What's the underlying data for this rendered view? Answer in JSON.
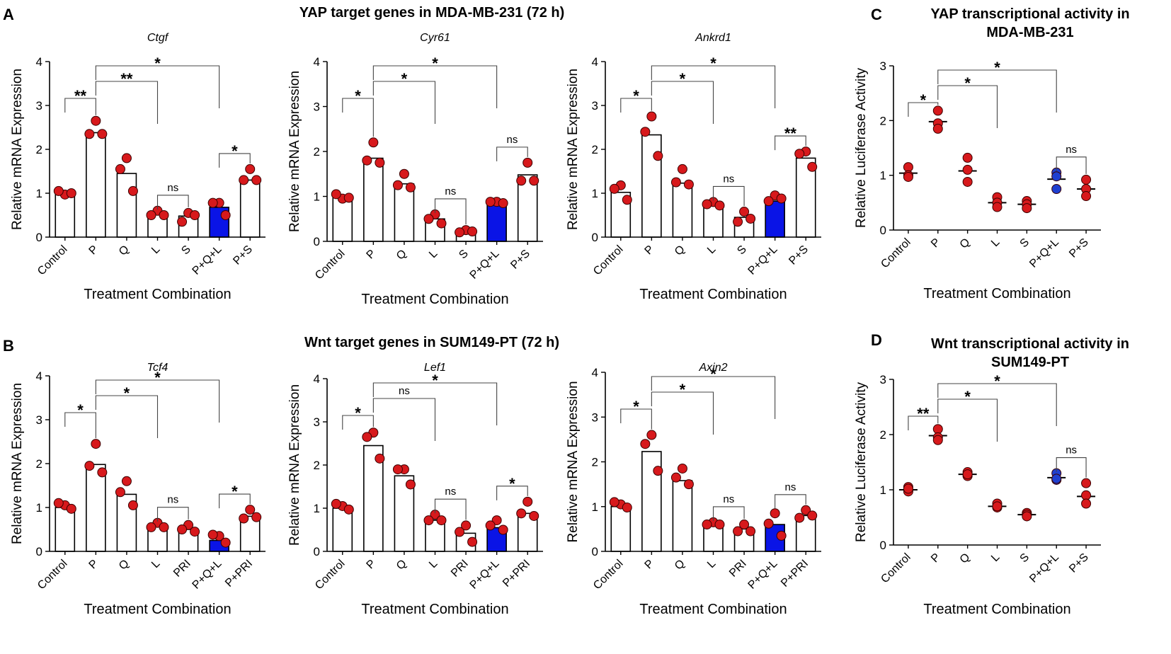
{
  "panel_labels": {
    "A": "A",
    "B": "B",
    "C": "C",
    "D": "D"
  },
  "titles": {
    "A": "YAP target genes in MDA-MB-231 (72 h)",
    "B": "Wnt target genes in SUM149-PT (72 h)",
    "C1": "YAP transcriptional activity in",
    "C2": "MDA-MB-231",
    "D1": "Wnt transcriptional activity in",
    "D2": "SUM149-PT"
  },
  "colors": {
    "bar": "#ffffff",
    "highlight": "#0a14e6",
    "red_dot": "#d7191c",
    "blue_dot": "#1f3fd0",
    "axis": "#000000"
  },
  "chart_data": [
    {
      "id": "ctgf",
      "type": "bar",
      "title": "Ctgf",
      "xlabel": "Treatment Combination",
      "ylabel": "Relative mRNA Expression",
      "ylim": [
        0,
        4
      ],
      "yticks": [
        "0",
        "1",
        "2",
        "3",
        "4"
      ],
      "categories": [
        "Control",
        "P",
        "Q",
        "L",
        "S",
        "P+Q+L",
        "P+S"
      ],
      "values": [
        1.0,
        2.38,
        1.45,
        0.52,
        0.48,
        0.68,
        1.3
      ],
      "highlight": [
        5
      ],
      "points": [
        [
          0.97,
          1.05,
          1.0
        ],
        [
          2.65,
          2.35,
          2.35
        ],
        [
          1.8,
          1.55,
          1.05
        ],
        [
          0.6,
          0.5,
          0.5
        ],
        [
          0.55,
          0.35,
          0.5
        ],
        [
          0.78,
          0.78,
          0.5
        ],
        [
          1.55,
          1.3,
          1.3
        ]
      ],
      "point_color": [
        "red",
        "red",
        "red",
        "red",
        "red",
        "red",
        "red"
      ],
      "significance": [
        {
          "from": 0,
          "to": 1,
          "label": "**"
        },
        {
          "from": 1,
          "to": 3,
          "label": "**"
        },
        {
          "from": 1,
          "to": 5,
          "label": "*"
        },
        {
          "from": 3,
          "to": 4,
          "label": "ns"
        },
        {
          "from": 5,
          "to": 6,
          "label": "*"
        }
      ]
    },
    {
      "id": "cyr61",
      "type": "bar",
      "title": "Cyr61",
      "xlabel": "Treatment Combination",
      "ylabel": "Relative mRNA Expression",
      "ylim": [
        0,
        4
      ],
      "yticks": [
        "0",
        "1",
        "2",
        "3",
        "4"
      ],
      "categories": [
        "Control",
        "P",
        "Q",
        "L",
        "S",
        "P+Q+L",
        "P+S"
      ],
      "values": [
        1.0,
        1.85,
        1.28,
        0.5,
        0.22,
        0.85,
        1.48
      ],
      "highlight": [
        5
      ],
      "points": [
        [
          0.95,
          1.05,
          0.97
        ],
        [
          2.2,
          1.8,
          1.75
        ],
        [
          1.5,
          1.25,
          1.2
        ],
        [
          0.6,
          0.5,
          0.4
        ],
        [
          0.25,
          0.2,
          0.22
        ],
        [
          0.88,
          0.88,
          0.85
        ],
        [
          1.75,
          1.35,
          1.35
        ]
      ],
      "point_color": [
        "red",
        "red",
        "red",
        "red",
        "red",
        "red",
        "red"
      ],
      "significance": [
        {
          "from": 0,
          "to": 1,
          "label": "*"
        },
        {
          "from": 1,
          "to": 3,
          "label": "*"
        },
        {
          "from": 1,
          "to": 5,
          "label": "*"
        },
        {
          "from": 3,
          "to": 4,
          "label": "ns"
        },
        {
          "from": 5,
          "to": 6,
          "label": "ns"
        }
      ]
    },
    {
      "id": "ankrd1",
      "type": "bar",
      "title": "Ankrd1",
      "xlabel": "Treatment Combination",
      "ylabel": "Relative mRNA Expression",
      "ylim": [
        0,
        4
      ],
      "yticks": [
        "0",
        "1",
        "2",
        "3",
        "4"
      ],
      "categories": [
        "Control",
        "P",
        "Q",
        "L",
        "S",
        "P+Q+L",
        "P+S"
      ],
      "values": [
        1.02,
        2.33,
        1.23,
        0.72,
        0.45,
        0.82,
        1.8
      ],
      "highlight": [
        5
      ],
      "points": [
        [
          1.18,
          1.1,
          0.85
        ],
        [
          2.75,
          2.4,
          1.85
        ],
        [
          1.55,
          1.25,
          1.2
        ],
        [
          0.8,
          0.75,
          0.72
        ],
        [
          0.58,
          0.35,
          0.42
        ],
        [
          0.95,
          0.82,
          0.88
        ],
        [
          1.95,
          1.9,
          1.6
        ]
      ],
      "point_color": [
        "red",
        "red",
        "red",
        "red",
        "red",
        "red",
        "red"
      ],
      "significance": [
        {
          "from": 0,
          "to": 1,
          "label": "*"
        },
        {
          "from": 1,
          "to": 3,
          "label": "*"
        },
        {
          "from": 1,
          "to": 5,
          "label": "*"
        },
        {
          "from": 3,
          "to": 4,
          "label": "ns"
        },
        {
          "from": 5,
          "to": 6,
          "label": "**"
        }
      ]
    },
    {
      "id": "yap-luc",
      "type": "scatter",
      "title": "",
      "xlabel": "Treatment Combination",
      "ylabel": "Relative Luciferase Activity",
      "ylim": [
        0,
        3
      ],
      "yticks": [
        "0",
        "1",
        "2",
        "3"
      ],
      "categories": [
        "Control",
        "P",
        "Q",
        "L",
        "S",
        "P+Q+L",
        "P+S"
      ],
      "values": [
        1.04,
        1.98,
        1.08,
        0.5,
        0.47,
        0.93,
        0.75
      ],
      "highlight": [],
      "points": [
        [
          1.15,
          1.0,
          0.97
        ],
        [
          2.18,
          1.95,
          1.85
        ],
        [
          1.32,
          1.1,
          0.88
        ],
        [
          0.6,
          0.5,
          0.42
        ],
        [
          0.53,
          0.47,
          0.4
        ],
        [
          1.05,
          0.98,
          0.75
        ],
        [
          0.92,
          0.75,
          0.62
        ]
      ],
      "point_color": [
        "red",
        "red",
        "red",
        "red",
        "red",
        "blue",
        "red"
      ],
      "significance": [
        {
          "from": 0,
          "to": 1,
          "label": "*"
        },
        {
          "from": 1,
          "to": 3,
          "label": "*"
        },
        {
          "from": 1,
          "to": 5,
          "label": "*"
        },
        {
          "from": 5,
          "to": 6,
          "label": "ns"
        }
      ]
    },
    {
      "id": "tcf4",
      "type": "bar",
      "title": "Tcf4",
      "xlabel": "Treatment Combination",
      "ylabel": "Relative mRNA Expression",
      "ylim": [
        0,
        4
      ],
      "yticks": [
        "0",
        "1",
        "2",
        "3",
        "4"
      ],
      "categories": [
        "Control",
        "P",
        "Q",
        "L",
        "PRI",
        "P+Q+L",
        "P+PRI"
      ],
      "values": [
        1.0,
        1.98,
        1.3,
        0.58,
        0.5,
        0.25,
        0.8
      ],
      "highlight": [
        5
      ],
      "points": [
        [
          1.05,
          1.1,
          0.97
        ],
        [
          2.45,
          1.95,
          1.8
        ],
        [
          1.6,
          1.35,
          1.05
        ],
        [
          0.65,
          0.55,
          0.55
        ],
        [
          0.6,
          0.5,
          0.45
        ],
        [
          0.35,
          0.38,
          0.2
        ],
        [
          0.95,
          0.75,
          0.78
        ]
      ],
      "point_color": [
        "red",
        "red",
        "red",
        "red",
        "red",
        "red",
        "red"
      ],
      "significance": [
        {
          "from": 0,
          "to": 1,
          "label": "*"
        },
        {
          "from": 1,
          "to": 3,
          "label": "*"
        },
        {
          "from": 1,
          "to": 5,
          "label": "*"
        },
        {
          "from": 3,
          "to": 4,
          "label": "ns"
        },
        {
          "from": 5,
          "to": 6,
          "label": "*"
        }
      ]
    },
    {
      "id": "lef1",
      "type": "bar",
      "title": "Lef1",
      "xlabel": "Treatment Combination",
      "ylabel": "Relative mRNA Expression",
      "ylim": [
        0,
        4
      ],
      "yticks": [
        "0",
        "1",
        "2",
        "3",
        "4"
      ],
      "categories": [
        "Control",
        "P",
        "Q",
        "L",
        "PRI",
        "P+Q+L",
        "P+PRI"
      ],
      "values": [
        1.0,
        2.45,
        1.75,
        0.72,
        0.42,
        0.55,
        0.88
      ],
      "highlight": [
        5
      ],
      "points": [
        [
          1.05,
          1.1,
          0.97
        ],
        [
          2.75,
          2.65,
          2.15
        ],
        [
          1.9,
          1.9,
          1.55
        ],
        [
          0.85,
          0.72,
          0.72
        ],
        [
          0.6,
          0.45,
          0.22
        ],
        [
          0.72,
          0.6,
          0.5
        ],
        [
          1.15,
          0.88,
          0.82
        ]
      ],
      "point_color": [
        "red",
        "red",
        "red",
        "red",
        "red",
        "red",
        "red"
      ],
      "significance": [
        {
          "from": 0,
          "to": 1,
          "label": "*"
        },
        {
          "from": 1,
          "to": 3,
          "label": "ns"
        },
        {
          "from": 1,
          "to": 5,
          "label": "*"
        },
        {
          "from": 3,
          "to": 4,
          "label": "ns"
        },
        {
          "from": 5,
          "to": 6,
          "label": "*"
        }
      ]
    },
    {
      "id": "axin2",
      "type": "bar",
      "title": "Axin2",
      "xlabel": "Treatment Combination",
      "ylabel": "Relative mRNA Expression",
      "ylim": [
        0,
        4
      ],
      "yticks": [
        "0",
        "1",
        "2",
        "3",
        "4"
      ],
      "categories": [
        "Control",
        "P",
        "Q",
        "L",
        "PRI",
        "P+Q+L",
        "P+PRI"
      ],
      "values": [
        1.0,
        2.23,
        1.58,
        0.62,
        0.5,
        0.6,
        0.8
      ],
      "highlight": [
        5
      ],
      "points": [
        [
          1.05,
          1.1,
          0.98
        ],
        [
          2.6,
          2.4,
          1.8
        ],
        [
          1.85,
          1.65,
          1.5
        ],
        [
          0.65,
          0.6,
          0.6
        ],
        [
          0.6,
          0.45,
          0.45
        ],
        [
          0.85,
          0.62,
          0.35
        ],
        [
          0.92,
          0.75,
          0.8
        ]
      ],
      "point_color": [
        "red",
        "red",
        "red",
        "red",
        "red",
        "red",
        "red"
      ],
      "significance": [
        {
          "from": 0,
          "to": 1,
          "label": "*"
        },
        {
          "from": 1,
          "to": 3,
          "label": "*"
        },
        {
          "from": 1,
          "to": 5,
          "label": "*"
        },
        {
          "from": 3,
          "to": 4,
          "label": "ns"
        },
        {
          "from": 5,
          "to": 6,
          "label": "ns"
        }
      ]
    },
    {
      "id": "wnt-luc",
      "type": "scatter",
      "title": "",
      "xlabel": "Treatment Combination",
      "ylabel": "Relative Luciferase Activity",
      "ylim": [
        0,
        3
      ],
      "yticks": [
        "0",
        "1",
        "2",
        "3"
      ],
      "categories": [
        "Control",
        "P",
        "Q",
        "L",
        "S",
        "P+Q+L",
        "P+S"
      ],
      "values": [
        1.0,
        1.98,
        1.28,
        0.7,
        0.55,
        1.22,
        0.88
      ],
      "highlight": [],
      "points": [
        [
          1.05,
          0.97,
          1.02
        ],
        [
          2.1,
          1.95,
          1.9
        ],
        [
          1.32,
          1.25,
          1.28
        ],
        [
          0.75,
          0.68,
          0.7
        ],
        [
          0.58,
          0.55,
          0.52
        ],
        [
          1.3,
          1.18,
          1.2
        ],
        [
          1.12,
          0.9,
          0.75
        ]
      ],
      "point_color": [
        "red",
        "red",
        "red",
        "red",
        "red",
        "blue",
        "red"
      ],
      "significance": [
        {
          "from": 0,
          "to": 1,
          "label": "**"
        },
        {
          "from": 1,
          "to": 3,
          "label": "*"
        },
        {
          "from": 1,
          "to": 5,
          "label": "*"
        },
        {
          "from": 5,
          "to": 6,
          "label": "ns"
        }
      ]
    }
  ]
}
